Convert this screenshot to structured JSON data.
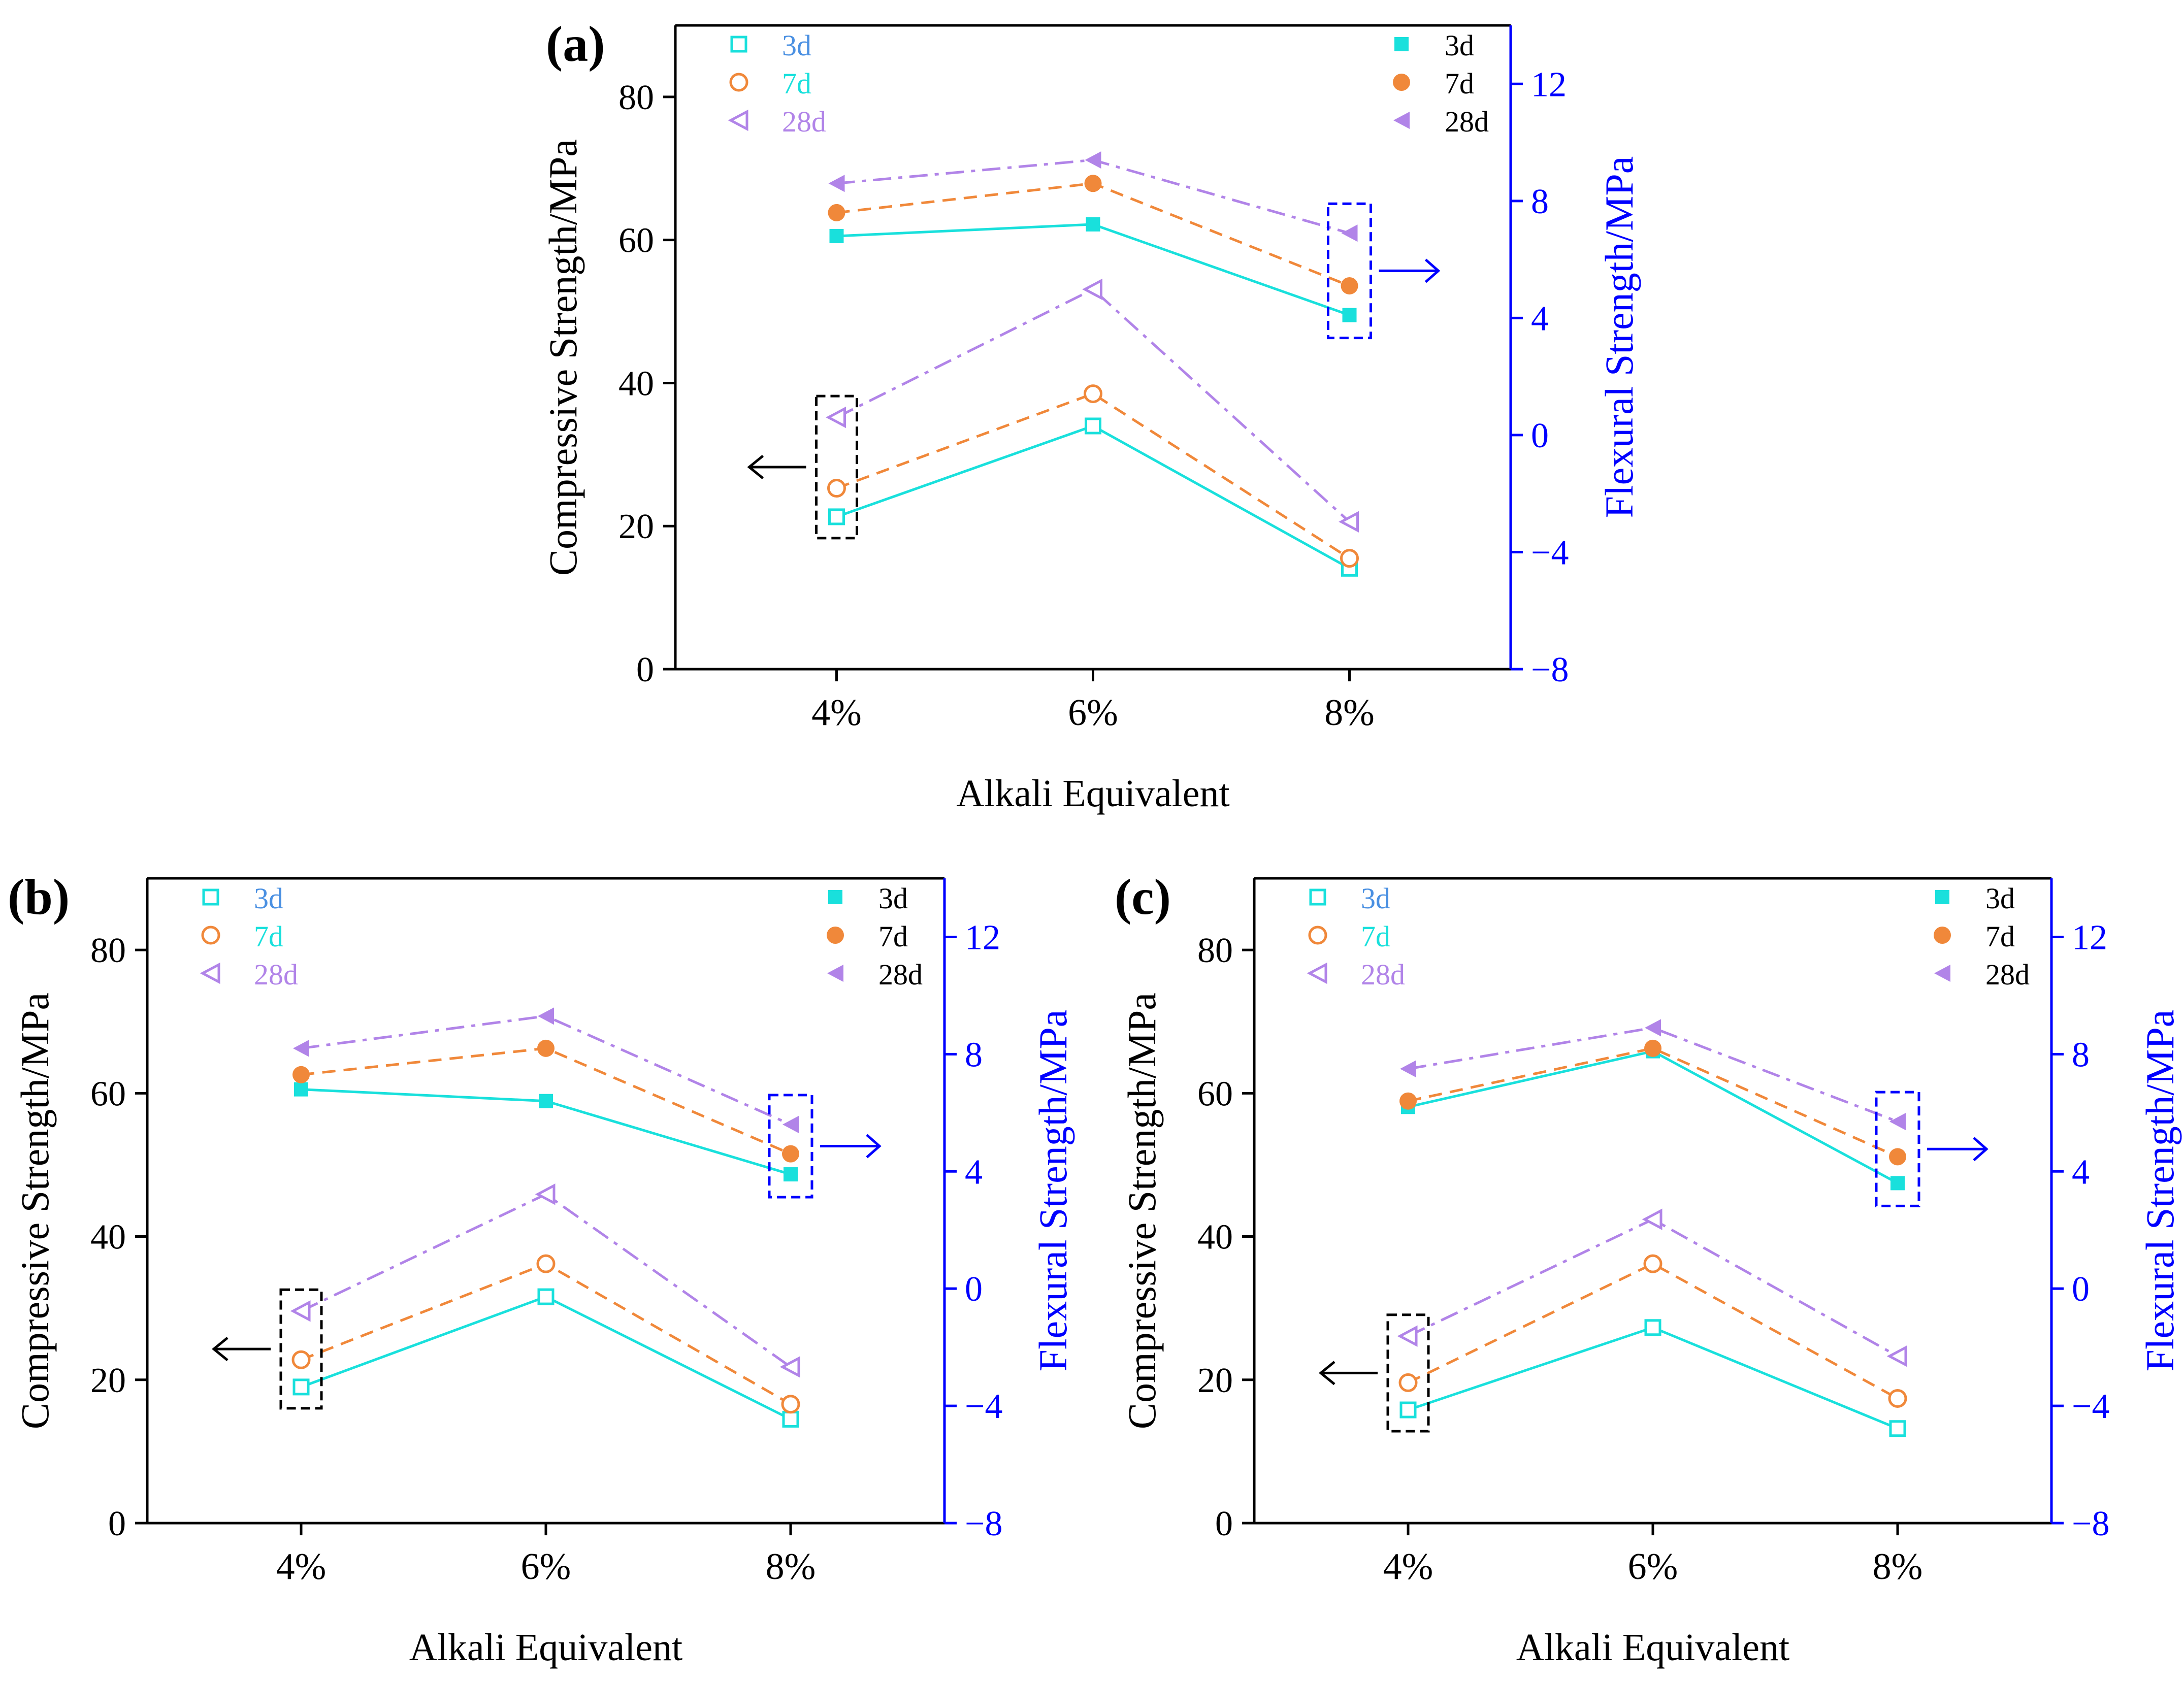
{
  "colors": {
    "series_3d": "#19E0DC",
    "series_7d": "#F0883A",
    "series_28d": "#B184E8",
    "label_3d_open": "#4A90E2",
    "label_7d_open": "#19E0DC",
    "label_28d_open": "#B184E8",
    "axis_left": "#000000",
    "axis_right": "#0000FF",
    "box_compressive": "#000000",
    "box_flexural": "#0000FF"
  },
  "chart_data": [
    {
      "panel": "(a)",
      "type": "line",
      "categories": [
        "4%",
        "6%",
        "8%"
      ],
      "xlabel": "Alkali Equivalent",
      "ylabel_left": "Compressive Strength/MPa",
      "ylabel_right": "Flexural Strength/MPa",
      "ylim_left": [
        0,
        90
      ],
      "ylim_right": [
        -8,
        14
      ],
      "yticks_left": [
        "0",
        "20",
        "40",
        "60",
        "80"
      ],
      "yticks_right": [
        "−8",
        "−4",
        "0",
        "4",
        "8",
        "12"
      ],
      "legend_left": [
        "3d",
        "7d",
        "28d"
      ],
      "legend_right": [
        "3d",
        "7d",
        "28d"
      ],
      "compressive": [
        {
          "name": "3d",
          "values": [
            21.3,
            34.0,
            14.1
          ]
        },
        {
          "name": "7d",
          "values": [
            25.3,
            38.5,
            15.5
          ]
        },
        {
          "name": "28d",
          "values": [
            35.2,
            53.1,
            20.6
          ]
        }
      ],
      "flexural": [
        {
          "name": "3d",
          "values": [
            6.8,
            7.2,
            4.1
          ]
        },
        {
          "name": "7d",
          "values": [
            7.6,
            8.6,
            5.1
          ]
        },
        {
          "name": "28d",
          "values": [
            8.6,
            9.4,
            6.9
          ]
        }
      ]
    },
    {
      "panel": "(b)",
      "type": "line",
      "categories": [
        "4%",
        "6%",
        "8%"
      ],
      "xlabel": "Alkali Equivalent",
      "ylabel_left": "Compressive Strength/MPa",
      "ylabel_right": "Flexural Strength/MPa",
      "ylim_left": [
        0,
        90
      ],
      "ylim_right": [
        -8,
        14
      ],
      "yticks_left": [
        "0",
        "20",
        "40",
        "60",
        "80"
      ],
      "yticks_right": [
        "−8",
        "−4",
        "0",
        "4",
        "8",
        "12"
      ],
      "legend_left": [
        "3d",
        "7d",
        "28d"
      ],
      "legend_right": [
        "3d",
        "7d",
        "28d"
      ],
      "compressive": [
        {
          "name": "3d",
          "values": [
            19.0,
            31.6,
            14.5
          ]
        },
        {
          "name": "7d",
          "values": [
            22.8,
            36.2,
            16.6
          ]
        },
        {
          "name": "28d",
          "values": [
            29.6,
            45.9,
            21.8
          ]
        }
      ],
      "flexural": [
        {
          "name": "3d",
          "values": [
            6.8,
            6.4,
            3.9
          ]
        },
        {
          "name": "7d",
          "values": [
            7.3,
            8.2,
            4.6
          ]
        },
        {
          "name": "28d",
          "values": [
            8.2,
            9.3,
            5.6
          ]
        }
      ]
    },
    {
      "panel": "(c)",
      "type": "line",
      "categories": [
        "4%",
        "6%",
        "8%"
      ],
      "xlabel": "Alkali Equivalent",
      "ylabel_left": "Compressive Strength/MPa",
      "ylabel_right": "Flexural Strength/MPa",
      "ylim_left": [
        0,
        90
      ],
      "ylim_right": [
        -8,
        14
      ],
      "yticks_left": [
        "0",
        "20",
        "40",
        "60",
        "80"
      ],
      "yticks_right": [
        "−8",
        "−4",
        "0",
        "4",
        "8",
        "12"
      ],
      "legend_left": [
        "3d",
        "7d",
        "28d"
      ],
      "legend_right": [
        "3d",
        "7d",
        "28d"
      ],
      "compressive": [
        {
          "name": "3d",
          "values": [
            15.8,
            27.3,
            13.2
          ]
        },
        {
          "name": "7d",
          "values": [
            19.6,
            36.2,
            17.4
          ]
        },
        {
          "name": "28d",
          "values": [
            26.1,
            42.4,
            23.3
          ]
        }
      ],
      "flexural": [
        {
          "name": "3d",
          "values": [
            6.2,
            8.1,
            3.6
          ]
        },
        {
          "name": "7d",
          "values": [
            6.4,
            8.2,
            4.5
          ]
        },
        {
          "name": "28d",
          "values": [
            7.5,
            8.9,
            5.7
          ]
        }
      ]
    }
  ]
}
